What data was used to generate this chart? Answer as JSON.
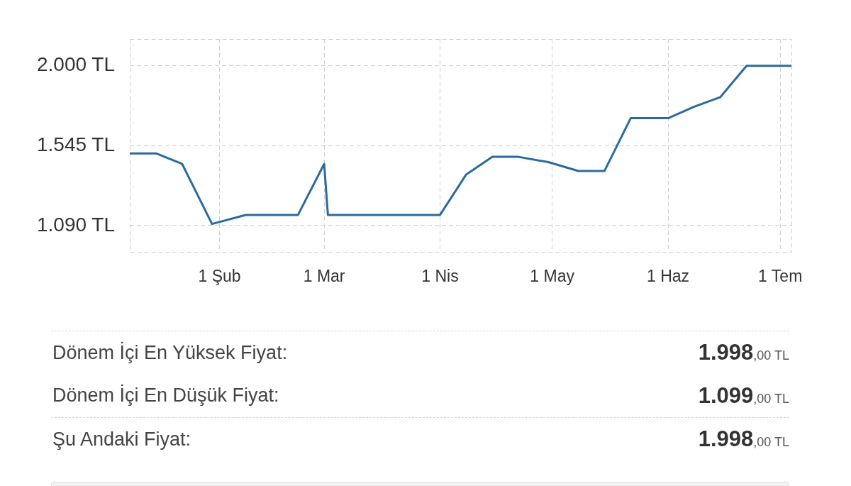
{
  "chart_data": {
    "type": "line",
    "x": [
      "--01-08",
      "--01-15",
      "--01-22",
      "--01-30",
      "--02-08",
      "--02-22",
      "--03-01",
      "--03-02",
      "--04-01",
      "--04-08",
      "--04-15",
      "--04-22",
      "--04-30",
      "--05-08",
      "--05-15",
      "--05-22",
      "--06-01",
      "--06-08",
      "--06-15",
      "--06-22",
      "--07-04"
    ],
    "series": [
      {
        "color": "#2b6a9e",
        "values": [
          1500,
          1500,
          1440,
          1099,
          1150,
          1150,
          1440,
          1150,
          1150,
          1380,
          1480,
          1480,
          1450,
          1400,
          1400,
          1700,
          1700,
          1765,
          1820,
          1998,
          1998
        ]
      }
    ],
    "xlim": [
      "--01-08",
      "--07-04"
    ],
    "xticks": [
      {
        "value": "--02-01",
        "label": "1 Şub"
      },
      {
        "value": "--03-01",
        "label": "1 Mar"
      },
      {
        "value": "--04-01",
        "label": "1 Nis"
      },
      {
        "value": "--05-01",
        "label": "1 May"
      },
      {
        "value": "--06-01",
        "label": "1 Haz"
      },
      {
        "value": "--07-01",
        "label": "1 Tem"
      }
    ],
    "ylim": [
      940,
      2150
    ],
    "yticks": [
      {
        "value": 1090,
        "label": "1.090 TL"
      },
      {
        "value": 1545,
        "label": "1.545 TL"
      },
      {
        "value": 2000,
        "label": "2.000 TL"
      }
    ],
    "grid": true,
    "legend": false,
    "marker": "none",
    "line_style": "solid",
    "annotations": [
      "Dönem İçi En Yüksek Fiyat:",
      "1.998,00 TL",
      "Dönem İçi En Düşük Fiyat:",
      "1.099,00 TL",
      "Şu Andaki Fiyat:",
      "1.998,00 TL"
    ]
  }
}
